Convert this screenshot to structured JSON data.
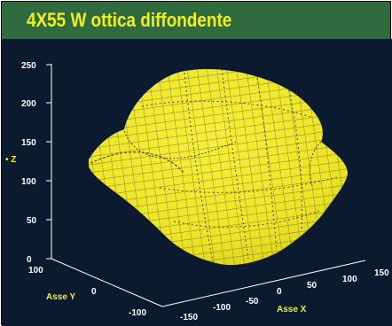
{
  "header": {
    "title": "4X55 W ottica diffondente"
  },
  "colors": {
    "title_bg": "#2f6b3f",
    "title_text": "#f2ef1c",
    "plot_bg": "#0c1a30",
    "surface": "#f0ea2a",
    "mesh": "#5a5a30",
    "axis_label": "#f2ef1c"
  },
  "chart_data": {
    "type": "surface3d",
    "title": "4X55 W ottica diffondente",
    "z_axis": {
      "label": "Z",
      "ticks": [
        "0",
        "50",
        "100",
        "150",
        "200",
        "250"
      ],
      "range": [
        0,
        250
      ]
    },
    "y_axis": {
      "label": "Asse Y",
      "ticks": [
        "100",
        "0",
        "-100"
      ],
      "range": [
        -100,
        100
      ]
    },
    "x_axis": {
      "label": "Asse X",
      "ticks": [
        "-150",
        "-100",
        "-50",
        "0",
        "50",
        "100",
        "150"
      ],
      "range": [
        -150,
        150
      ]
    },
    "grid": false
  }
}
